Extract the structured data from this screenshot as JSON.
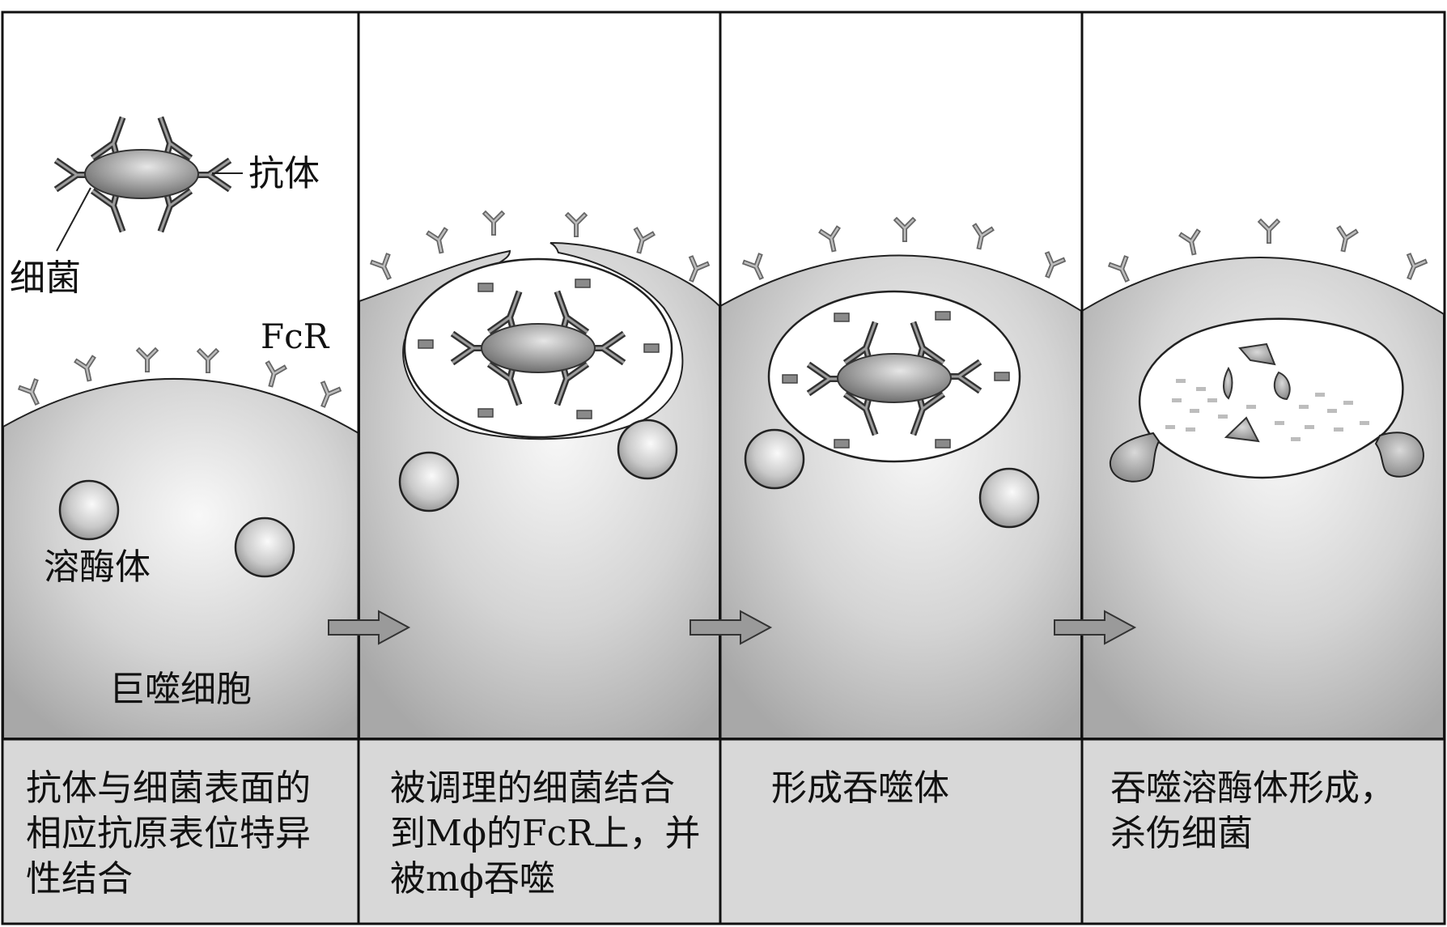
{
  "labels": {
    "antibody": "抗体",
    "bacteria": "细菌",
    "fcr": "FcR",
    "lysosome": "溶酶体",
    "macrophage": "巨噬细胞"
  },
  "panels": [
    {
      "caption": "抗体与细菌表面的\n相应抗原表位特异\n性结合"
    },
    {
      "caption": "被调理的细菌结合\n到Mϕ的FcR上，并\n被mϕ吞噬"
    },
    {
      "caption": "形成吞噬体"
    },
    {
      "caption": "吞噬溶酶体形成，\n杀伤细菌"
    }
  ],
  "colors": {
    "cell_light": "#f6f6f6",
    "cell_dark": "#a9a9a9",
    "caption_bg": "#d8d8d8",
    "outline": "#222222",
    "receptor": "#8a8a8a",
    "arrow": "#9a9a9a"
  }
}
